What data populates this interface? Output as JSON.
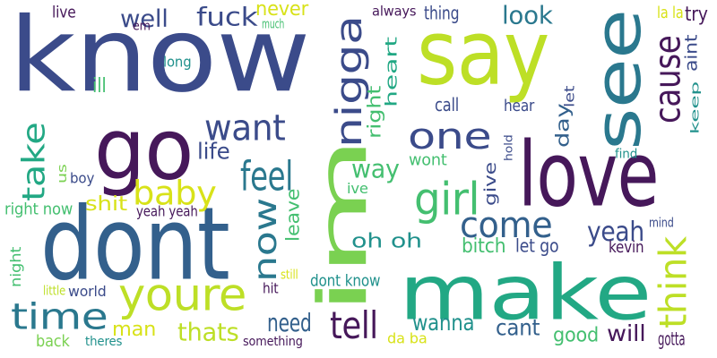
{
  "palette": {
    "dark_purple": "#46185a",
    "indigo": "#3b4b8a",
    "blue": "#33608c",
    "teal_blue": "#2a788e",
    "teal": "#21918c",
    "green_teal": "#22a884",
    "green": "#44bf70",
    "light_green": "#7ad151",
    "yellow_green": "#bddf26",
    "yellow": "#d8e219"
  },
  "words": [
    {
      "text": "know",
      "color": "#3b4b8a",
      "vertical": false
    },
    {
      "text": "say",
      "color": "#bddf26",
      "vertical": false
    },
    {
      "text": "see",
      "color": "#2a788e",
      "vertical": true
    },
    {
      "text": "go",
      "color": "#46185a",
      "vertical": false
    },
    {
      "text": "love",
      "color": "#46185a",
      "vertical": false
    },
    {
      "text": "im",
      "color": "#7ad151",
      "vertical": true
    },
    {
      "text": "dont",
      "color": "#33608c",
      "vertical": false
    },
    {
      "text": "make",
      "color": "#22a884",
      "vertical": false
    },
    {
      "text": "nigga",
      "color": "#3b4b8a",
      "vertical": true
    },
    {
      "text": "want",
      "color": "#3b4b8a",
      "vertical": false
    },
    {
      "text": "one",
      "color": "#3b4b8a",
      "vertical": false
    },
    {
      "text": "cause",
      "color": "#46185a",
      "vertical": true
    },
    {
      "text": "take",
      "color": "#22a884",
      "vertical": true
    },
    {
      "text": "feel",
      "color": "#2a788e",
      "vertical": false
    },
    {
      "text": "baby",
      "color": "#d8e219",
      "vertical": false
    },
    {
      "text": "girl",
      "color": "#44bf70",
      "vertical": false
    },
    {
      "text": "now",
      "color": "#2a788e",
      "vertical": true
    },
    {
      "text": "youre",
      "color": "#bddf26",
      "vertical": false
    },
    {
      "text": "time",
      "color": "#2a788e",
      "vertical": false
    },
    {
      "text": "tell",
      "color": "#46185a",
      "vertical": false
    },
    {
      "text": "think",
      "color": "#bddf26",
      "vertical": true
    },
    {
      "text": "come",
      "color": "#33608c",
      "vertical": false
    },
    {
      "text": "yeah",
      "color": "#3b4b8a",
      "vertical": false
    },
    {
      "text": "well",
      "color": "#3b4b8a",
      "vertical": false
    },
    {
      "text": "fuck",
      "color": "#3b4b8a",
      "vertical": false
    },
    {
      "text": "never",
      "color": "#d8e219",
      "vertical": false
    },
    {
      "text": "look",
      "color": "#2a788e",
      "vertical": false
    },
    {
      "text": "heart",
      "color": "#22a884",
      "vertical": true
    },
    {
      "text": "right",
      "color": "#44bf70",
      "vertical": true
    },
    {
      "text": "keep",
      "color": "#21918c",
      "vertical": true
    },
    {
      "text": "aint",
      "color": "#3b4b8a",
      "vertical": true
    },
    {
      "text": "let",
      "color": "#3b4b8a",
      "vertical": true
    },
    {
      "text": "day",
      "color": "#33608c",
      "vertical": true
    },
    {
      "text": "life",
      "color": "#3b4b8a",
      "vertical": false
    },
    {
      "text": "way",
      "color": "#44bf70",
      "vertical": false
    },
    {
      "text": "give",
      "color": "#3b4b8a",
      "vertical": true
    },
    {
      "text": "leave",
      "color": "#44bf70",
      "vertical": true
    },
    {
      "text": "shit",
      "color": "#d8e219",
      "vertical": false
    },
    {
      "text": "oh oh",
      "color": "#21918c",
      "vertical": false
    },
    {
      "text": "need",
      "color": "#33608c",
      "vertical": false
    },
    {
      "text": "thats",
      "color": "#bddf26",
      "vertical": false
    },
    {
      "text": "man",
      "color": "#d8e219",
      "vertical": false
    },
    {
      "text": "wanna",
      "color": "#21918c",
      "vertical": false
    },
    {
      "text": "cant",
      "color": "#33608c",
      "vertical": false
    },
    {
      "text": "will",
      "color": "#46185a",
      "vertical": false
    },
    {
      "text": "good",
      "color": "#44bf70",
      "vertical": false
    },
    {
      "text": "dont know",
      "color": "#21918c",
      "vertical": false
    },
    {
      "text": "bitch",
      "color": "#44bf70",
      "vertical": false
    },
    {
      "text": "let go",
      "color": "#3b4b8a",
      "vertical": false
    },
    {
      "text": "kevin",
      "color": "#46185a",
      "vertical": false
    },
    {
      "text": "wont",
      "color": "#44bf70",
      "vertical": false
    },
    {
      "text": "call",
      "color": "#3b4b8a",
      "vertical": false
    },
    {
      "text": "hear",
      "color": "#3b4b8a",
      "vertical": false
    },
    {
      "text": "hold",
      "color": "#3b4b8a",
      "vertical": true
    },
    {
      "text": "always",
      "color": "#46185a",
      "vertical": false
    },
    {
      "text": "thing",
      "color": "#3b4b8a",
      "vertical": false
    },
    {
      "text": "try",
      "color": "#46185a",
      "vertical": false
    },
    {
      "text": "la la",
      "color": "#d8e219",
      "vertical": false
    },
    {
      "text": "live",
      "color": "#46185a",
      "vertical": false
    },
    {
      "text": "em",
      "color": "#46185a",
      "vertical": false
    },
    {
      "text": "much",
      "color": "#44bf70",
      "vertical": false
    },
    {
      "text": "long",
      "color": "#21918c",
      "vertical": false
    },
    {
      "text": "ill",
      "color": "#44bf70",
      "vertical": false
    },
    {
      "text": "us",
      "color": "#7ad151",
      "vertical": true
    },
    {
      "text": "boy",
      "color": "#3b4b8a",
      "vertical": false
    },
    {
      "text": "right now",
      "color": "#44bf70",
      "vertical": false
    },
    {
      "text": "yeah yeah",
      "color": "#46185a",
      "vertical": false
    },
    {
      "text": "ive",
      "color": "#44bf70",
      "vertical": false
    },
    {
      "text": "find",
      "color": "#21918c",
      "vertical": false
    },
    {
      "text": "mind",
      "color": "#3b4b8a",
      "vertical": false
    },
    {
      "text": "night",
      "color": "#44bf70",
      "vertical": true
    },
    {
      "text": "little",
      "color": "#bddf26",
      "vertical": false
    },
    {
      "text": "world",
      "color": "#3b4b8a",
      "vertical": false
    },
    {
      "text": "still",
      "color": "#d8e219",
      "vertical": false
    },
    {
      "text": "hit",
      "color": "#46185a",
      "vertical": false
    },
    {
      "text": "back",
      "color": "#7ad151",
      "vertical": false
    },
    {
      "text": "theres",
      "color": "#21918c",
      "vertical": false
    },
    {
      "text": "something",
      "color": "#46185a",
      "vertical": false
    },
    {
      "text": "da ba",
      "color": "#d8e219",
      "vertical": false
    },
    {
      "text": "gotta",
      "color": "#46185a",
      "vertical": false
    }
  ]
}
